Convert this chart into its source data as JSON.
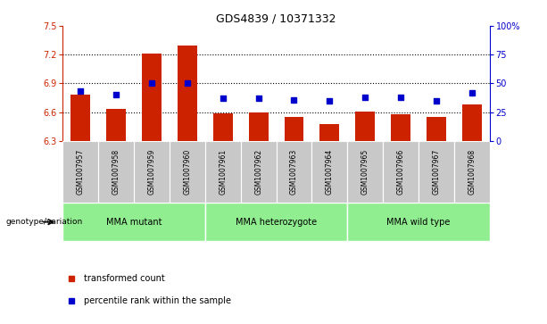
{
  "title": "GDS4839 / 10371332",
  "samples": [
    "GSM1007957",
    "GSM1007958",
    "GSM1007959",
    "GSM1007960",
    "GSM1007961",
    "GSM1007962",
    "GSM1007963",
    "GSM1007964",
    "GSM1007965",
    "GSM1007966",
    "GSM1007967",
    "GSM1007968"
  ],
  "transformed_counts": [
    6.78,
    6.63,
    7.21,
    7.3,
    6.59,
    6.6,
    6.55,
    6.48,
    6.61,
    6.58,
    6.55,
    6.68
  ],
  "percentile_ranks": [
    43,
    40,
    50,
    50,
    37,
    37,
    36,
    35,
    38,
    38,
    35,
    42
  ],
  "groups": [
    {
      "label": "MMA mutant",
      "start": 0,
      "end": 3
    },
    {
      "label": "MMA heterozygote",
      "start": 4,
      "end": 7
    },
    {
      "label": "MMA wild type",
      "start": 8,
      "end": 11
    }
  ],
  "group_color": "#90EE90",
  "bar_color": "#CC2200",
  "dot_color": "#0000CC",
  "sample_bg_color": "#C8C8C8",
  "ylim_left": [
    6.3,
    7.5
  ],
  "ylim_right": [
    0,
    100
  ],
  "yticks_left": [
    6.3,
    6.6,
    6.9,
    7.2,
    7.5
  ],
  "yticks_right": [
    0,
    25,
    50,
    75,
    100
  ],
  "ytick_labels_right": [
    "0",
    "25",
    "50",
    "75",
    "100%"
  ],
  "grid_values": [
    6.6,
    6.9,
    7.2
  ],
  "legend_items": [
    {
      "label": "transformed count",
      "color": "#CC2200"
    },
    {
      "label": "percentile rank within the sample",
      "color": "#0000CC"
    }
  ],
  "genotype_label": "genotype/variation"
}
